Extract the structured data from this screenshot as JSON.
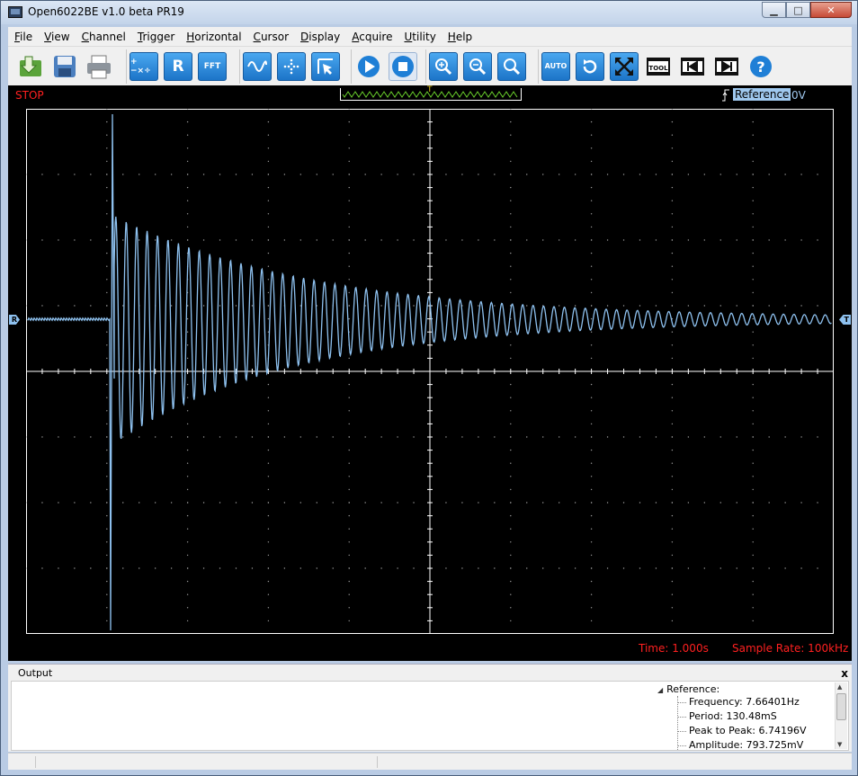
{
  "window": {
    "title": "Open6022BE v1.0 beta PR19",
    "minimize": "▁",
    "maximize": "□",
    "close": "✕"
  },
  "menu": [
    {
      "label": "File",
      "accel": "F",
      "rest": "ile"
    },
    {
      "label": "View",
      "accel": "V",
      "rest": "iew"
    },
    {
      "label": "Channel",
      "accel": "C",
      "rest": "hannel"
    },
    {
      "label": "Trigger",
      "accel": "T",
      "rest": "rigger"
    },
    {
      "label": "Horizontal",
      "accel": "H",
      "rest": "orizontal"
    },
    {
      "label": "Cursor",
      "accel": "C",
      "rest": "ursor"
    },
    {
      "label": "Display",
      "accel": "D",
      "rest": "isplay"
    },
    {
      "label": "Acquire",
      "accel": "A",
      "rest": "cquire"
    },
    {
      "label": "Utility",
      "accel": "U",
      "rest": "tility"
    },
    {
      "label": "Help",
      "accel": "H",
      "rest": "elp"
    }
  ],
  "toolbar": {
    "math_label": "+−×÷",
    "ref_label": "R",
    "fft_label": "FFT",
    "auto_label": "AUTO",
    "tool_label": "TOOL",
    "help_label": "?"
  },
  "scope": {
    "status": "STOP",
    "trigger_marker": "T",
    "reference_label": "Reference",
    "reference_level": "0V",
    "left_marker": "R",
    "right_marker": "T",
    "time": "Time: 1.000s",
    "sample_rate": "Sample Rate: 100kHz",
    "trace_color": "#8ec1ef",
    "status_color": "#ff2020"
  },
  "output": {
    "title": "Output",
    "close": "x",
    "tree": {
      "root": "Reference:",
      "items": [
        "Frequency: 7.66401Hz",
        "Period: 130.48mS",
        "Peak to Peak: 6.74196V",
        "Amplitude: 793.725mV"
      ]
    }
  }
}
